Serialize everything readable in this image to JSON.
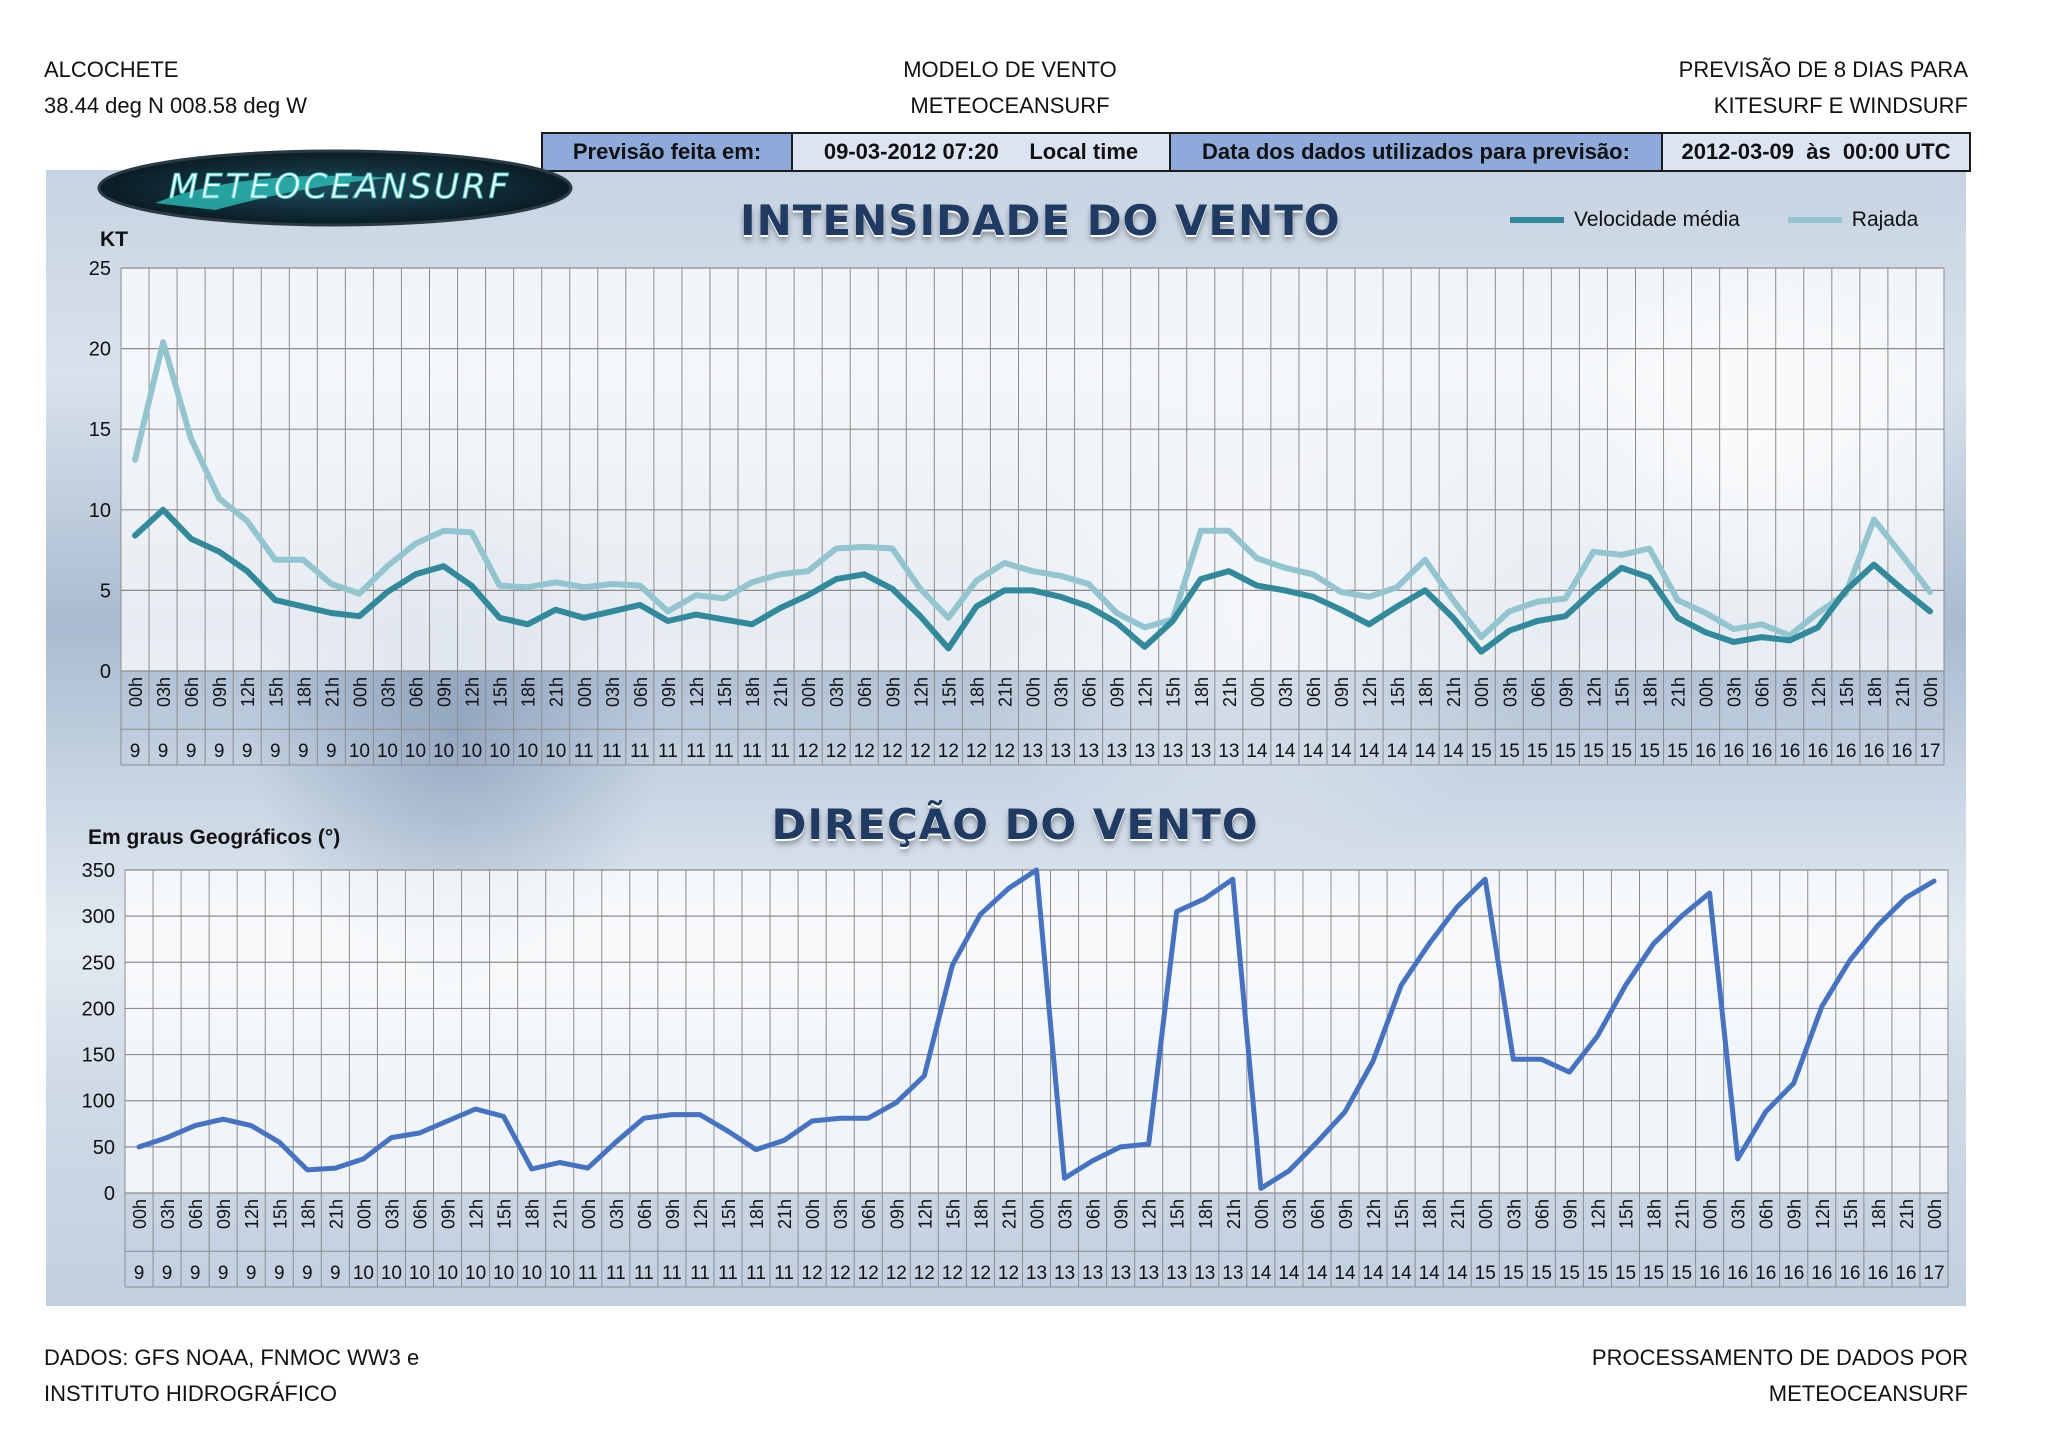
{
  "header": {
    "left": [
      "ALCOCHETE",
      "38.44 deg N 008.58 deg W"
    ],
    "center": [
      "MODELO DE VENTO",
      "METEOCEANSURF"
    ],
    "right": [
      "PREVISÃO DE 8 DIAS PARA",
      "KITESURF E WINDSURF"
    ]
  },
  "infobar": {
    "label1": "Previsão feita em:",
    "value1": "09-03-2012 07:20     Local time",
    "label2": "Data dos dados utilizados para previsão:",
    "value2": "2012-03-09  às  00:00 UTC"
  },
  "logo_text": "METEOCEANSURF",
  "footer": {
    "left": [
      "DADOS: GFS NOAA, FNMOC WW3 e",
      "INSTITUTO HIDROGRÁFICO"
    ],
    "right": [
      "PROCESSAMENTO DE DADOS POR",
      "METEOCEANSURF"
    ]
  },
  "colors": {
    "mean": "#31899c",
    "gust": "#93c5d1",
    "direction": "#4472c4",
    "grid": "#8c8c8c",
    "plot_bg": "#ffffff"
  },
  "chart_data": [
    {
      "type": "line",
      "title": "INTENSIDADE DO VENTO",
      "ylabel": "KT",
      "ylim": [
        0,
        25
      ],
      "yticks": [
        0,
        5,
        10,
        15,
        20,
        25
      ],
      "grid": true,
      "legend_position": "top-right",
      "x_hours": [
        "00h",
        "03h",
        "06h",
        "09h",
        "12h",
        "15h",
        "18h",
        "21h",
        "00h",
        "03h",
        "06h",
        "09h",
        "12h",
        "15h",
        "18h",
        "21h",
        "00h",
        "03h",
        "06h",
        "09h",
        "12h",
        "15h",
        "18h",
        "21h",
        "00h",
        "03h",
        "06h",
        "09h",
        "12h",
        "15h",
        "18h",
        "21h",
        "00h",
        "03h",
        "06h",
        "09h",
        "12h",
        "15h",
        "18h",
        "21h",
        "00h",
        "03h",
        "06h",
        "09h",
        "12h",
        "15h",
        "18h",
        "21h",
        "00h",
        "03h",
        "06h",
        "09h",
        "12h",
        "15h",
        "18h",
        "21h",
        "00h",
        "03h",
        "06h",
        "09h",
        "12h",
        "15h",
        "18h",
        "21h",
        "00h"
      ],
      "x_days": [
        "9",
        "9",
        "9",
        "9",
        "9",
        "9",
        "9",
        "9",
        "10",
        "10",
        "10",
        "10",
        "10",
        "10",
        "10",
        "10",
        "11",
        "11",
        "11",
        "11",
        "11",
        "11",
        "11",
        "11",
        "12",
        "12",
        "12",
        "12",
        "12",
        "12",
        "12",
        "12",
        "13",
        "13",
        "13",
        "13",
        "13",
        "13",
        "13",
        "13",
        "14",
        "14",
        "14",
        "14",
        "14",
        "14",
        "14",
        "14",
        "15",
        "15",
        "15",
        "15",
        "15",
        "15",
        "15",
        "15",
        "16",
        "16",
        "16",
        "16",
        "16",
        "16",
        "16",
        "16",
        "17"
      ],
      "series": [
        {
          "name": "Velocidade média",
          "values": [
            8.4,
            10.0,
            8.2,
            7.4,
            6.2,
            4.4,
            4.0,
            3.6,
            3.4,
            4.9,
            6.0,
            6.5,
            5.3,
            3.3,
            2.9,
            3.8,
            3.3,
            3.7,
            4.1,
            3.1,
            3.5,
            3.2,
            2.9,
            3.9,
            4.7,
            5.7,
            6.0,
            5.1,
            3.4,
            1.4,
            4.0,
            5.0,
            5.0,
            4.6,
            4.0,
            3.0,
            1.5,
            3.1,
            5.7,
            6.2,
            5.3,
            5.0,
            4.6,
            3.8,
            2.9,
            4.0,
            5.0,
            3.3,
            1.2,
            2.5,
            3.1,
            3.4,
            5.0,
            6.4,
            5.8,
            3.3,
            2.4,
            1.8,
            2.1,
            1.9,
            2.7,
            5.0,
            6.6,
            5.1,
            3.7
          ]
        },
        {
          "name": "Rajada",
          "values": [
            13.1,
            20.4,
            14.4,
            10.7,
            9.3,
            6.9,
            6.9,
            5.4,
            4.8,
            6.5,
            7.9,
            8.7,
            8.6,
            5.3,
            5.2,
            5.5,
            5.2,
            5.4,
            5.3,
            3.7,
            4.7,
            4.5,
            5.5,
            6.0,
            6.2,
            7.6,
            7.7,
            7.6,
            5.1,
            3.3,
            5.6,
            6.7,
            6.2,
            5.9,
            5.4,
            3.6,
            2.7,
            3.2,
            8.7,
            8.7,
            7.0,
            6.4,
            6.0,
            4.9,
            4.6,
            5.2,
            6.9,
            4.4,
            2.1,
            3.7,
            4.3,
            4.5,
            7.4,
            7.2,
            7.6,
            4.4,
            3.6,
            2.6,
            2.9,
            2.2,
            3.6,
            4.8,
            9.4,
            7.2,
            4.9
          ]
        }
      ]
    },
    {
      "type": "line",
      "title": "DIREÇÃO DO VENTO",
      "ylabel": "Em graus Geográficos (°)",
      "ylim": [
        0,
        350
      ],
      "yticks": [
        0,
        50,
        100,
        150,
        200,
        250,
        300,
        350
      ],
      "grid": true,
      "x_hours": [
        "00h",
        "03h",
        "06h",
        "09h",
        "12h",
        "15h",
        "18h",
        "21h",
        "00h",
        "03h",
        "06h",
        "09h",
        "12h",
        "15h",
        "18h",
        "21h",
        "00h",
        "03h",
        "06h",
        "09h",
        "12h",
        "15h",
        "18h",
        "21h",
        "00h",
        "03h",
        "06h",
        "09h",
        "12h",
        "15h",
        "18h",
        "21h",
        "00h",
        "03h",
        "06h",
        "09h",
        "12h",
        "15h",
        "18h",
        "21h",
        "00h",
        "03h",
        "06h",
        "09h",
        "12h",
        "15h",
        "18h",
        "21h",
        "00h",
        "03h",
        "06h",
        "09h",
        "12h",
        "15h",
        "18h",
        "21h",
        "00h",
        "03h",
        "06h",
        "09h",
        "12h",
        "15h",
        "18h",
        "21h",
        "00h"
      ],
      "x_days": [
        "9",
        "9",
        "9",
        "9",
        "9",
        "9",
        "9",
        "9",
        "10",
        "10",
        "10",
        "10",
        "10",
        "10",
        "10",
        "10",
        "11",
        "11",
        "11",
        "11",
        "11",
        "11",
        "11",
        "11",
        "12",
        "12",
        "12",
        "12",
        "12",
        "12",
        "12",
        "12",
        "13",
        "13",
        "13",
        "13",
        "13",
        "13",
        "13",
        "13",
        "14",
        "14",
        "14",
        "14",
        "14",
        "14",
        "14",
        "14",
        "15",
        "15",
        "15",
        "15",
        "15",
        "15",
        "15",
        "15",
        "16",
        "16",
        "16",
        "16",
        "16",
        "16",
        "16",
        "16",
        "17"
      ],
      "series": [
        {
          "values": [
            50,
            60,
            73,
            80,
            73,
            55,
            25,
            27,
            37,
            60,
            65,
            78,
            91,
            83,
            26,
            33,
            27,
            55,
            81,
            85,
            85,
            67,
            47,
            57,
            78,
            81,
            81,
            98,
            127,
            247,
            302,
            330,
            350,
            16,
            35,
            50,
            53,
            305,
            319,
            340,
            5,
            24,
            55,
            88,
            143,
            225,
            270,
            310,
            340,
            145,
            145,
            131,
            170,
            225,
            270,
            300,
            325,
            37,
            88,
            119,
            202,
            252,
            290,
            320,
            338
          ]
        }
      ]
    }
  ]
}
